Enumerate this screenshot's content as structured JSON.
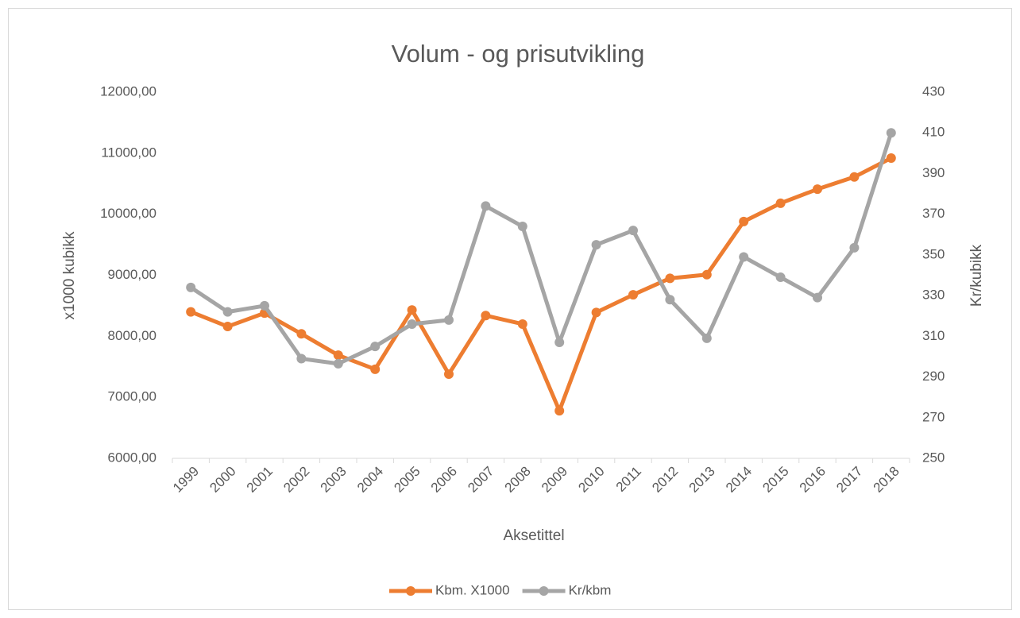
{
  "chart_data": {
    "type": "line",
    "title": "Volum - og prisutvikling",
    "x_label": "Aksetittel",
    "y_label": "x1000 kubikk",
    "y2_label": "Kr/kubikk",
    "categories": [
      "1999",
      "2000",
      "2001",
      "2002",
      "2003",
      "2004",
      "2005",
      "2006",
      "2007",
      "2008",
      "2009",
      "2010",
      "2011",
      "2012",
      "2013",
      "2014",
      "2015",
      "2016",
      "2017",
      "2018"
    ],
    "series": [
      {
        "name": "Kbm. X1000",
        "color": "#ed7d31",
        "values": [
          8400,
          8160,
          8380,
          8040,
          7690,
          7460,
          8430,
          7380,
          8340,
          8200,
          6780,
          8390,
          8680,
          8950,
          9010,
          9880,
          10180,
          10410,
          10610,
          10920
        ]
      },
      {
        "name": "Kr/kbm",
        "color": "#a5a5a5",
        "axis": "y2",
        "values": [
          334,
          322,
          325,
          299,
          296.5,
          305,
          316,
          318,
          374,
          364,
          307,
          355,
          362,
          328,
          309,
          349,
          339,
          329,
          353.5,
          410
        ]
      }
    ],
    "ylim": [
      6000,
      12000
    ],
    "yticks": [
      {
        "value": 6000,
        "label": "6000,00"
      },
      {
        "value": 7000,
        "label": "7000,00"
      },
      {
        "value": 8000,
        "label": "8000,00"
      },
      {
        "value": 9000,
        "label": "9000,00"
      },
      {
        "value": 10000,
        "label": "10000,00"
      },
      {
        "value": 11000,
        "label": "11000,00"
      },
      {
        "value": 12000,
        "label": "12000,00"
      }
    ],
    "y2lim": [
      250,
      430
    ],
    "y2ticks": [
      250,
      270,
      290,
      310,
      330,
      350,
      370,
      390,
      410,
      430
    ],
    "legend": "bottom"
  }
}
